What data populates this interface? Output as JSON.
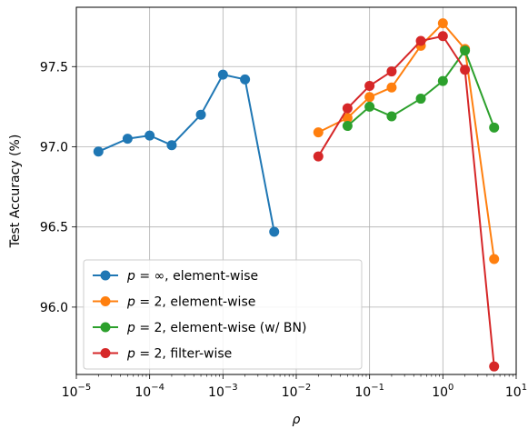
{
  "chart_data": {
    "type": "line",
    "title": "",
    "xlabel": "ρ",
    "ylabel": "Test Accuracy (%)",
    "xscale": "log",
    "xlim": [
      1e-05,
      10
    ],
    "ylim": [
      95.58,
      97.87
    ],
    "grid": true,
    "legend_position": "lower-left",
    "x_ticks": [
      {
        "value": 1e-05,
        "base": "10",
        "exp": "−5"
      },
      {
        "value": 0.0001,
        "base": "10",
        "exp": "−4"
      },
      {
        "value": 0.001,
        "base": "10",
        "exp": "−3"
      },
      {
        "value": 0.01,
        "base": "10",
        "exp": "−2"
      },
      {
        "value": 0.1,
        "base": "10",
        "exp": "−1"
      },
      {
        "value": 1,
        "base": "10",
        "exp": "0"
      },
      {
        "value": 10,
        "base": "10",
        "exp": "1"
      }
    ],
    "y_ticks": [
      {
        "value": 96.0,
        "label": "96.0"
      },
      {
        "value": 96.5,
        "label": "96.5"
      },
      {
        "value": 97.0,
        "label": "97.0"
      },
      {
        "value": 97.5,
        "label": "97.5"
      }
    ],
    "series": [
      {
        "name": "p = ∞, element-wise",
        "legend_p": "p",
        "legend_rest": " = ∞, element-wise",
        "color": "#1f77b4",
        "x": [
          2e-05,
          5e-05,
          0.0001,
          0.0002,
          0.0005,
          0.001,
          0.002,
          0.005
        ],
        "y": [
          96.97,
          97.05,
          97.07,
          97.01,
          97.2,
          97.45,
          97.42,
          96.47
        ]
      },
      {
        "name": "p = 2, element-wise",
        "legend_p": "p",
        "legend_rest": " = 2, element-wise",
        "color": "#ff7f0e",
        "x": [
          0.02,
          0.05,
          0.1,
          0.2,
          0.5,
          1,
          2,
          5
        ],
        "y": [
          97.09,
          97.18,
          97.31,
          97.37,
          97.63,
          97.77,
          97.61,
          96.3
        ]
      },
      {
        "name": "p = 2, element-wise (w/ BN)",
        "legend_p": "p",
        "legend_rest": " = 2, element-wise (w/ BN)",
        "color": "#2ca02c",
        "x": [
          0.05,
          0.1,
          0.2,
          0.5,
          1,
          2,
          5
        ],
        "y": [
          97.13,
          97.25,
          97.19,
          97.3,
          97.41,
          97.6,
          97.12
        ]
      },
      {
        "name": "p = 2, filter-wise",
        "legend_p": "p",
        "legend_rest": " = 2, filter-wise",
        "color": "#d62728",
        "x": [
          0.02,
          0.05,
          0.1,
          0.2,
          0.5,
          1,
          2,
          5
        ],
        "y": [
          96.94,
          97.24,
          97.38,
          97.47,
          97.66,
          97.69,
          97.48,
          95.63
        ]
      }
    ]
  }
}
